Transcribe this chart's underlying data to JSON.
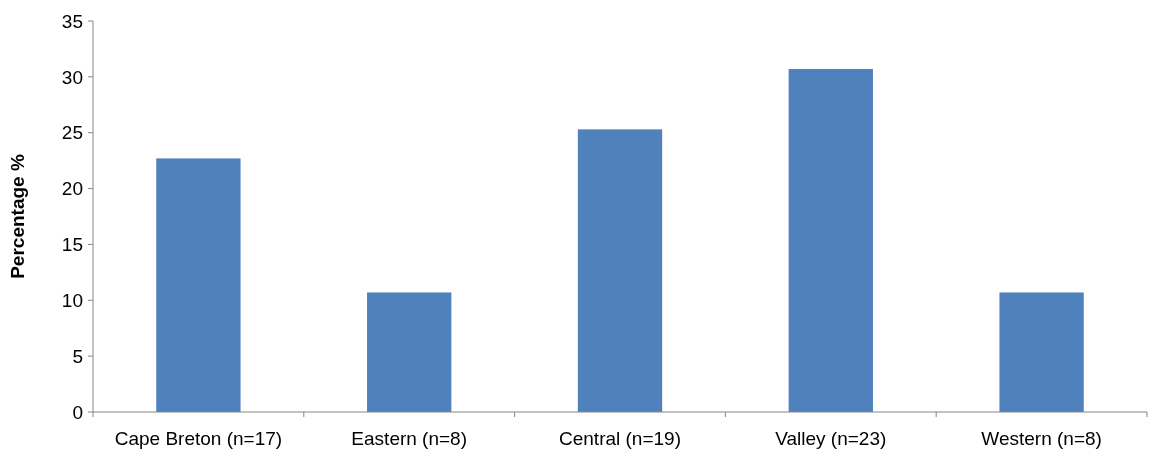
{
  "chart_data": {
    "type": "bar",
    "ylabel": "Percentage %",
    "categories": [
      "Cape Breton (n=17)",
      "Eastern (n=8)",
      "Central (n=19)",
      "Valley (n=23)",
      "Western (n=8)"
    ],
    "values": [
      22.7,
      10.7,
      25.3,
      30.7,
      10.7
    ],
    "color": "#4f81bd",
    "ylim": [
      0,
      35
    ],
    "yticks": [
      0,
      5,
      10,
      15,
      20,
      25,
      30,
      35
    ],
    "grid": false
  }
}
